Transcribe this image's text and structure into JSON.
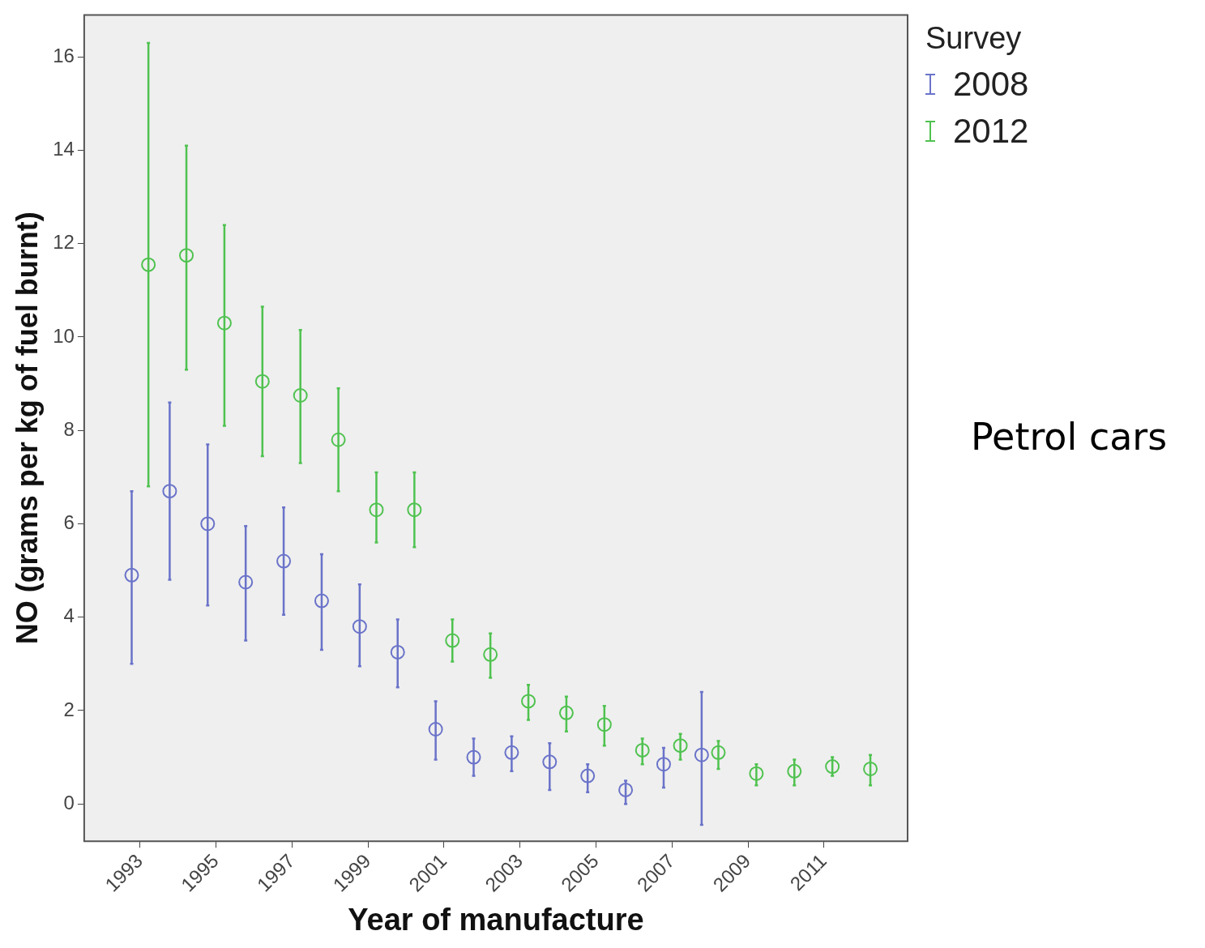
{
  "chart_data": {
    "type": "scatter",
    "xlabel": "Year of manufacture",
    "ylabel": "NO (grams per kg of fuel burnt)",
    "legend_title": "Survey",
    "legend": "top right",
    "marker": "circle",
    "annotations": [
      "Petrol cars"
    ],
    "categories": [
      "1993",
      null,
      "1995",
      null,
      "1997",
      null,
      "1999",
      null,
      "2001",
      null,
      "2003",
      null,
      "2005",
      null,
      "2007",
      null,
      "2009",
      null,
      "2011",
      null
    ],
    "ylim": [
      -0.8,
      16.9
    ],
    "yticks": [
      0,
      2,
      4,
      6,
      8,
      10,
      12,
      14,
      16
    ],
    "series": [
      {
        "name": "2008",
        "color": "#6a73c9",
        "values": [
          4.9,
          6.7,
          6.0,
          4.75,
          5.2,
          4.35,
          3.8,
          3.25,
          1.6,
          1.0,
          1.1,
          0.9,
          0.6,
          0.3,
          0.85,
          1.05,
          null,
          null,
          null,
          null
        ],
        "errors": [
          [
            3.0,
            6.7
          ],
          [
            4.8,
            8.6
          ],
          [
            4.25,
            7.7
          ],
          [
            3.5,
            5.95
          ],
          [
            4.05,
            6.35
          ],
          [
            3.3,
            5.35
          ],
          [
            2.95,
            4.7
          ],
          [
            2.5,
            3.95
          ],
          [
            0.95,
            2.2
          ],
          [
            0.6,
            1.4
          ],
          [
            0.7,
            1.45
          ],
          [
            0.3,
            1.3
          ],
          [
            0.25,
            0.85
          ],
          [
            0.0,
            0.5
          ],
          [
            0.35,
            1.2
          ],
          [
            -0.45,
            2.4
          ],
          null,
          null,
          null,
          null
        ]
      },
      {
        "name": "2012",
        "color": "#4fc24f",
        "values": [
          11.55,
          11.75,
          10.3,
          9.05,
          8.75,
          7.8,
          6.3,
          6.3,
          3.5,
          3.2,
          2.2,
          1.95,
          1.7,
          1.15,
          1.25,
          1.1,
          0.65,
          0.7,
          0.8,
          0.75
        ],
        "errors": [
          [
            6.8,
            16.3
          ],
          [
            9.3,
            14.1
          ],
          [
            8.1,
            12.4
          ],
          [
            7.45,
            10.65
          ],
          [
            7.3,
            10.15
          ],
          [
            6.7,
            8.9
          ],
          [
            5.6,
            7.1
          ],
          [
            5.5,
            7.1
          ],
          [
            3.05,
            3.95
          ],
          [
            2.7,
            3.65
          ],
          [
            1.8,
            2.55
          ],
          [
            1.55,
            2.3
          ],
          [
            1.25,
            2.1
          ],
          [
            0.85,
            1.4
          ],
          [
            0.95,
            1.5
          ],
          [
            0.75,
            1.35
          ],
          [
            0.4,
            0.85
          ],
          [
            0.4,
            0.95
          ],
          [
            0.6,
            1.0
          ],
          [
            0.4,
            1.05
          ]
        ]
      }
    ]
  }
}
